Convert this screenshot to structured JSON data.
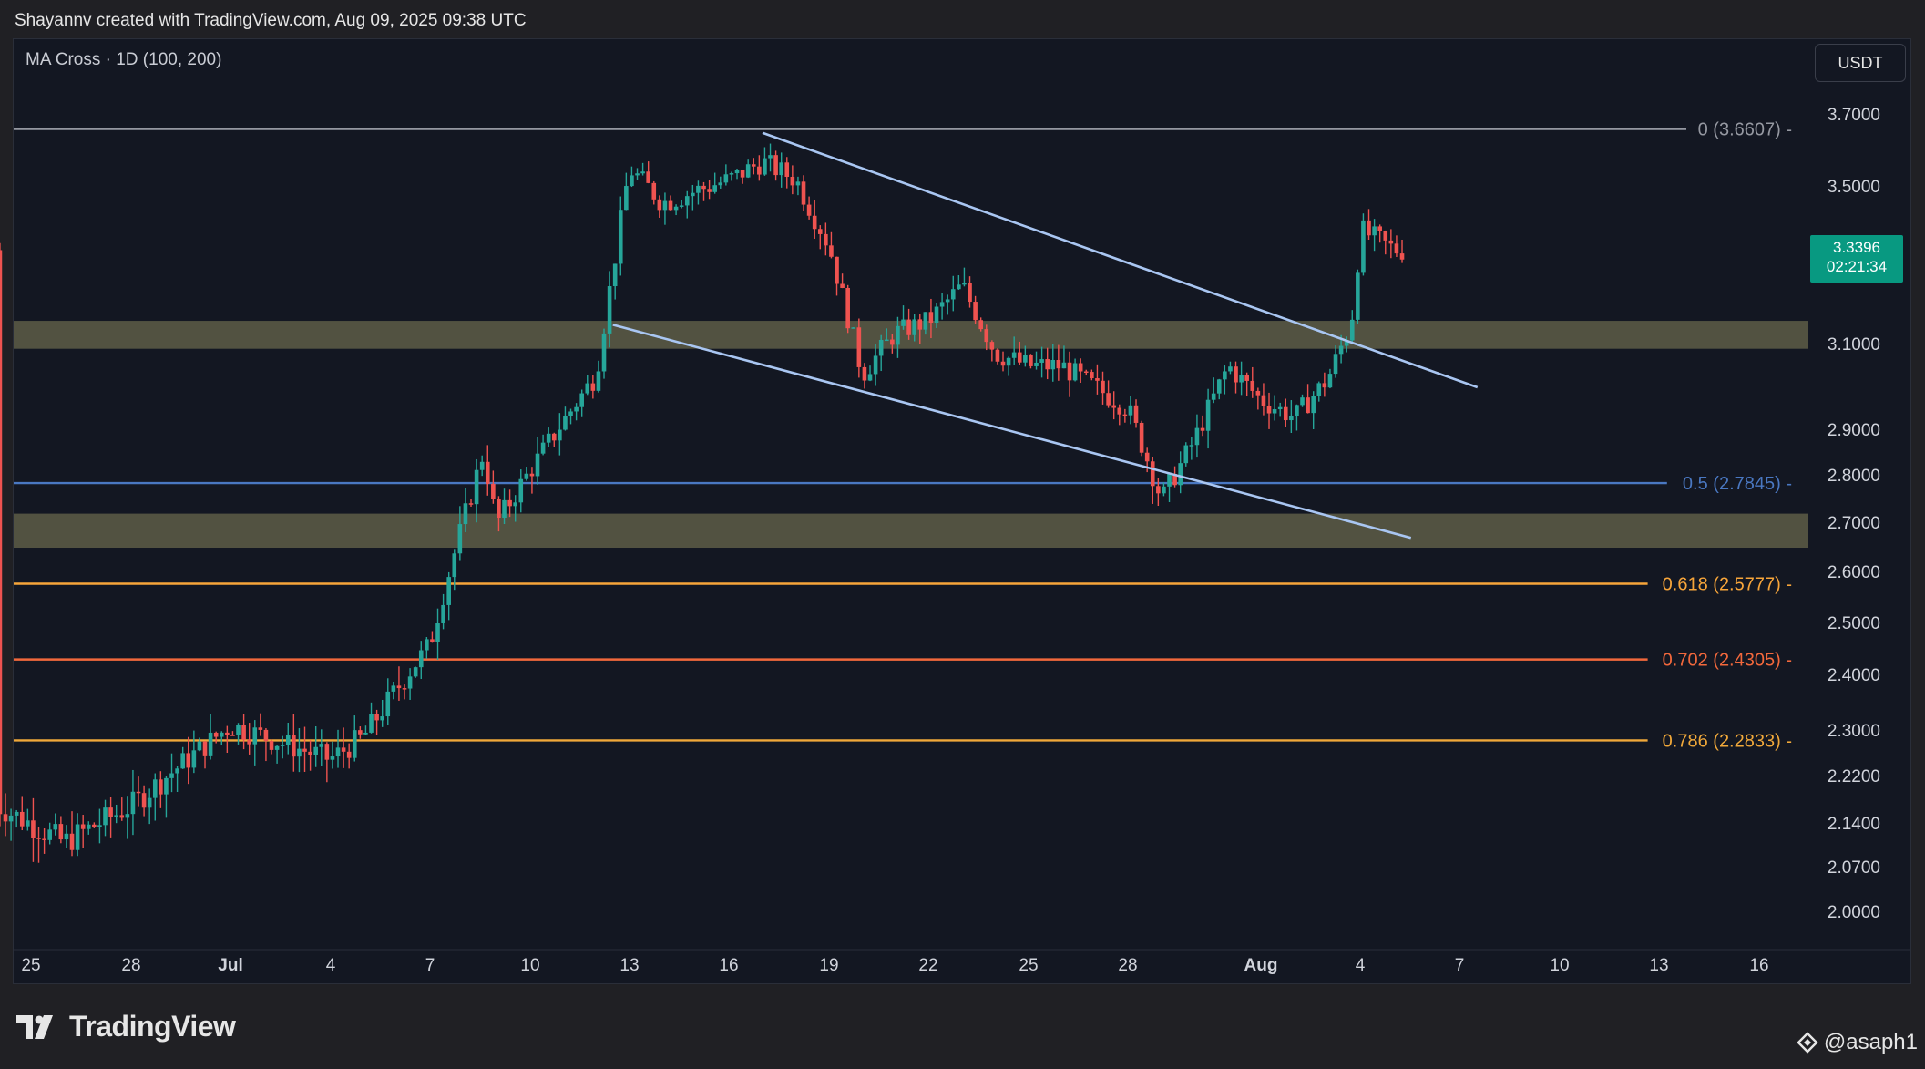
{
  "header": {
    "caption": "Shayannv created with TradingView.com, Aug 09, 2025 09:38 UTC",
    "indicator": "MA Cross · 1D (100, 200)",
    "currency": "USDT"
  },
  "price_badge": {
    "price": "3.3396",
    "countdown": "02:21:34"
  },
  "brand": {
    "name": "TradingView"
  },
  "watermark": {
    "handle": "@asaph1"
  },
  "colors": {
    "bull": "#26a69a",
    "bear": "#ef5350",
    "background": "#131722",
    "zone": "#6b6a4e",
    "trendline": "#a9c6f2",
    "fib0": "#9598a1",
    "fib05": "#4a78c2",
    "fib618": "#f7a53a",
    "fib702": "#f2683c",
    "fib786": "#f0a83a"
  },
  "chart_data": {
    "type": "candlestick",
    "symbol_timeframe": "1D",
    "y_axis": {
      "ticks": [
        "3.7000",
        "3.5000",
        "3.1000",
        "2.9000",
        "2.8000",
        "2.7000",
        "2.6000",
        "2.5000",
        "2.4000",
        "2.3000",
        "2.2200",
        "2.1400",
        "2.0700",
        "2.0000"
      ],
      "range": [
        1.95,
        3.8
      ]
    },
    "x_axis": {
      "ticks": [
        "25",
        "28",
        "Jul",
        "4",
        "7",
        "10",
        "13",
        "16",
        "19",
        "22",
        "25",
        "28",
        "Aug",
        "4",
        "7",
        "10",
        "13",
        "16"
      ],
      "bold_ticks": [
        "Jul",
        "Aug"
      ]
    },
    "fib_levels": [
      {
        "label": "0 (3.6607)",
        "value": 3.6607,
        "color": "#9598a1"
      },
      {
        "label": "0.5 (2.7845)",
        "value": 2.7845,
        "color": "#4a78c2"
      },
      {
        "label": "0.618 (2.5777)",
        "value": 2.5777,
        "color": "#f7a53a"
      },
      {
        "label": "0.702 (2.4305)",
        "value": 2.4305,
        "color": "#f2683c"
      },
      {
        "label": "0.786 (2.2833)",
        "value": 2.2833,
        "color": "#f0a83a"
      }
    ],
    "zones": [
      {
        "from": 3.09,
        "to": 3.16
      },
      {
        "from": 2.65,
        "to": 2.72
      }
    ],
    "trendlines": [
      {
        "points": [
          [
            22,
            3.65
          ],
          [
            43.5,
            3.0
          ]
        ]
      },
      {
        "points": [
          [
            17.5,
            3.15
          ],
          [
            41.5,
            2.67
          ]
        ]
      }
    ],
    "anchors": [
      [
        -1,
        2.17
      ],
      [
        1,
        2.11
      ],
      [
        3,
        2.17
      ],
      [
        6,
        2.31
      ],
      [
        9,
        2.25
      ],
      [
        10,
        2.29
      ],
      [
        12,
        2.46
      ],
      [
        13.6,
        2.85
      ],
      [
        14,
        2.7
      ],
      [
        16,
        2.92
      ],
      [
        17,
        3.03
      ],
      [
        18,
        3.55
      ],
      [
        19,
        3.46
      ],
      [
        21,
        3.52
      ],
      [
        22,
        3.57
      ],
      [
        23,
        3.52
      ],
      [
        24,
        3.35
      ],
      [
        25,
        3.03
      ],
      [
        26,
        3.13
      ],
      [
        27,
        3.16
      ],
      [
        28,
        3.25
      ],
      [
        29,
        3.08
      ],
      [
        30,
        3.05
      ],
      [
        31,
        3.05
      ],
      [
        32,
        3.0
      ],
      [
        33,
        2.95
      ],
      [
        34,
        2.75
      ],
      [
        35,
        2.88
      ],
      [
        36,
        3.05
      ],
      [
        37,
        2.97
      ],
      [
        38,
        2.93
      ],
      [
        39,
        3.02
      ],
      [
        39.7,
        3.15
      ],
      [
        40,
        3.39
      ],
      [
        41,
        3.34
      ]
    ],
    "last_price": 3.3396,
    "last_countdown": "02:21:34"
  }
}
